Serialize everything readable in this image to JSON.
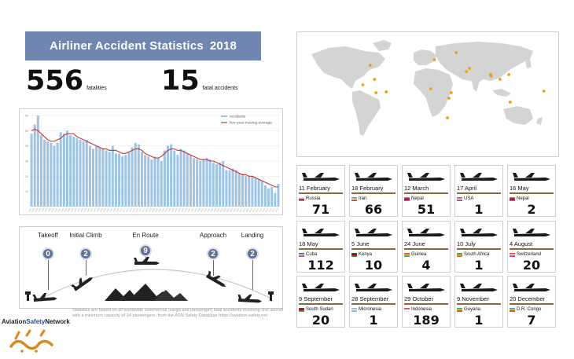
{
  "title": {
    "text": "Airliner Accident Statistics",
    "year": "2018"
  },
  "stats": [
    {
      "value": "556",
      "label": "fatalities"
    },
    {
      "value": "15",
      "label": "fatal accidents"
    }
  ],
  "chart_data": {
    "type": "bar",
    "title": "",
    "xlabel": "",
    "ylabel": "",
    "legend_position": "top-right",
    "grid": true,
    "ylim": [
      0,
      60
    ],
    "y_ticks": [
      "10",
      "20",
      "30",
      "40",
      "50",
      "60"
    ],
    "categories": [
      "1942",
      "1943",
      "1944",
      "1945",
      "1946",
      "1947",
      "1948",
      "1949",
      "1950",
      "1951",
      "1952",
      "1953",
      "1954",
      "1955",
      "1956",
      "1957",
      "1958",
      "1959",
      "1960",
      "1961",
      "1962",
      "1963",
      "1964",
      "1965",
      "1966",
      "1967",
      "1968",
      "1969",
      "1970",
      "1971",
      "1972",
      "1973",
      "1974",
      "1975",
      "1976",
      "1977",
      "1978",
      "1979",
      "1980",
      "1981",
      "1982",
      "1983",
      "1984",
      "1985",
      "1986",
      "1987",
      "1988",
      "1989",
      "1990",
      "1991",
      "1992",
      "1993",
      "1994",
      "1995",
      "1996",
      "1997",
      "1998",
      "1999",
      "2000",
      "2001",
      "2002",
      "2003",
      "2004",
      "2005",
      "2006",
      "2007",
      "2008",
      "2009",
      "2010",
      "2011",
      "2012",
      "2013",
      "2014",
      "2015",
      "2016",
      "2017",
      "2018"
    ],
    "series": [
      {
        "name": "accidents",
        "kind": "bar",
        "color": "#9dc3e6",
        "values": [
          48,
          54,
          60,
          47,
          44,
          43,
          42,
          40,
          42,
          49,
          48,
          50,
          47,
          46,
          45,
          44,
          43,
          44,
          40,
          38,
          40,
          39,
          38,
          37,
          36,
          40,
          35,
          35,
          33,
          34,
          36,
          39,
          42,
          41,
          36,
          34,
          33,
          31,
          33,
          32,
          30,
          37,
          40,
          41,
          37,
          34,
          38,
          37,
          35,
          34,
          32,
          31,
          30,
          31,
          32,
          31,
          29,
          28,
          29,
          30,
          24,
          24,
          25,
          24,
          22,
          21,
          20,
          20,
          20,
          19,
          18,
          17,
          14,
          12,
          13,
          9,
          15
        ]
      },
      {
        "name": "five-year moving average",
        "kind": "line",
        "color": "#c0392b",
        "values": [
          50,
          51,
          50,
          48,
          46,
          44,
          43,
          43,
          44,
          45,
          47,
          48,
          48,
          48,
          46,
          45,
          44,
          43,
          42,
          41,
          40,
          39,
          38,
          38,
          37,
          37,
          37,
          36,
          35,
          35,
          36,
          37,
          38,
          38,
          37,
          35,
          34,
          33,
          32,
          32,
          33,
          35,
          37,
          38,
          38,
          37,
          37,
          36,
          35,
          34,
          33,
          32,
          31,
          31,
          31,
          30,
          30,
          29,
          28,
          27,
          26,
          25,
          24,
          23,
          22,
          21,
          21,
          20,
          20,
          19,
          18,
          17,
          16,
          15,
          14,
          13,
          13
        ]
      }
    ]
  },
  "phases": [
    {
      "name": "Takeoff",
      "count": "0"
    },
    {
      "name": "Initial Climb",
      "count": "2"
    },
    {
      "name": "En Route",
      "count": "9"
    },
    {
      "name": "Approach",
      "count": "2"
    },
    {
      "name": "Landing",
      "count": "2"
    }
  ],
  "map": {
    "land_color": "#d4d4d4",
    "marker_color": "#f39c12",
    "markers": [
      {
        "lon": -74,
        "lat": 22
      },
      {
        "lon": -80,
        "lat": 40
      },
      {
        "lon": -90,
        "lat": 15
      },
      {
        "lon": -72,
        "lat": 5
      },
      {
        "lon": 8,
        "lat": 47
      },
      {
        "lon": 38,
        "lat": 56
      },
      {
        "lon": 52,
        "lat": 32
      },
      {
        "lon": 56,
        "lat": 36
      },
      {
        "lon": 3,
        "lat": 10
      },
      {
        "lon": 31,
        "lat": 5
      },
      {
        "lon": 28,
        "lat": -2
      },
      {
        "lon": 26,
        "lat": -27
      },
      {
        "lon": 85,
        "lat": 28
      },
      {
        "lon": 86,
        "lat": 26
      },
      {
        "lon": 110,
        "lat": 28
      },
      {
        "lon": 98,
        "lat": 22
      },
      {
        "lon": 158,
        "lat": 7
      },
      {
        "lon": 112,
        "lat": -7
      },
      {
        "lon": -58,
        "lat": 6
      }
    ]
  },
  "accidents": [
    {
      "date": "11 February",
      "country": "Russia",
      "fatalities": "71",
      "flag": [
        "#ffffff",
        "#1f4fbf",
        "#d52b1e"
      ]
    },
    {
      "date": "18 February",
      "country": "Iran",
      "fatalities": "66",
      "flag": [
        "#239f40",
        "#ffffff",
        "#da0000"
      ]
    },
    {
      "date": "12 March",
      "country": "Nepal",
      "fatalities": "51",
      "flag": [
        "#dc143c",
        "#003893",
        "#dc143c"
      ]
    },
    {
      "date": "17 April",
      "country": "USA",
      "fatalities": "1",
      "flag": [
        "#b22234",
        "#ffffff",
        "#3c3b6e"
      ]
    },
    {
      "date": "16 May",
      "country": "Nepal",
      "fatalities": "2",
      "flag": [
        "#dc143c",
        "#003893",
        "#dc143c"
      ]
    },
    {
      "date": "18 May",
      "country": "Cuba",
      "fatalities": "112",
      "flag": [
        "#002a8f",
        "#ffffff",
        "#cf142b"
      ]
    },
    {
      "date": "5 June",
      "country": "Kenya",
      "fatalities": "10",
      "flag": [
        "#000000",
        "#bb0000",
        "#006600"
      ]
    },
    {
      "date": "24 June",
      "country": "Guinea",
      "fatalities": "4",
      "flag": [
        "#ce1126",
        "#fcd116",
        "#009460"
      ]
    },
    {
      "date": "10 July",
      "country": "South Africa",
      "fatalities": "1",
      "flag": [
        "#007a4d",
        "#ffb612",
        "#de3831"
      ]
    },
    {
      "date": "4 August",
      "country": "Switzerland",
      "fatalities": "20",
      "flag": [
        "#ff0000",
        "#ffffff",
        "#ff0000"
      ]
    },
    {
      "date": "9 September",
      "country": "South Sudan",
      "fatalities": "20",
      "flag": [
        "#000000",
        "#da121a",
        "#078930"
      ]
    },
    {
      "date": "28 September",
      "country": "Micronesia",
      "fatalities": "1",
      "flag": [
        "#75b2dd",
        "#ffffff",
        "#75b2dd"
      ]
    },
    {
      "date": "29 October",
      "country": "Indonesia",
      "fatalities": "189",
      "flag": [
        "#ce1126",
        "#ffffff",
        "#ffffff"
      ]
    },
    {
      "date": "9 November",
      "country": "Guyana",
      "fatalities": "1",
      "flag": [
        "#009e49",
        "#fcd116",
        "#ce1126"
      ]
    },
    {
      "date": "20 December",
      "country": "D.R. Congo",
      "fatalities": "7",
      "flag": [
        "#007fff",
        "#f7d618",
        "#ce1021"
      ]
    }
  ],
  "footer": {
    "brand_a": "Aviation",
    "brand_b": "Safety",
    "brand_c": "Network",
    "note": "Statistics are based on all worldwide commercial (cargo and passenger) fatal accidents involving civil aircraft with a minimum capacity of 14 passengers, from the ASN Safety Database https://aviation-safety.net"
  }
}
